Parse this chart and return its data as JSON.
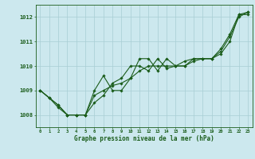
{
  "title": "Graphe pression niveau de la mer (hPa)",
  "background_color": "#cce8ee",
  "grid_color": "#a8cdd4",
  "line_color": "#1a5c1a",
  "xlim": [
    -0.5,
    23.5
  ],
  "ylim": [
    1007.5,
    1012.5
  ],
  "yticks": [
    1008,
    1009,
    1010,
    1011,
    1012
  ],
  "xticks": [
    0,
    1,
    2,
    3,
    4,
    5,
    6,
    7,
    8,
    9,
    10,
    11,
    12,
    13,
    14,
    15,
    16,
    17,
    18,
    19,
    20,
    21,
    22,
    23
  ],
  "series": [
    [
      1009.0,
      1008.7,
      1008.4,
      1008.0,
      1008.0,
      1008.0,
      1009.0,
      1009.6,
      1009.0,
      1009.0,
      1009.5,
      1010.3,
      1010.3,
      1009.8,
      1010.3,
      1010.0,
      1010.0,
      1010.3,
      1010.3,
      1010.3,
      1010.7,
      1011.3,
      1012.1,
      1012.2
    ],
    [
      1009.0,
      1008.7,
      1008.4,
      1008.0,
      1008.0,
      1008.0,
      1008.8,
      1009.0,
      1009.2,
      1009.3,
      1009.5,
      1009.8,
      1010.0,
      1010.0,
      1010.0,
      1010.0,
      1010.2,
      1010.3,
      1010.3,
      1010.3,
      1010.6,
      1011.2,
      1012.0,
      1012.2
    ],
    [
      1009.0,
      1008.7,
      1008.3,
      1008.0,
      1008.0,
      1008.0,
      1008.5,
      1008.8,
      1009.3,
      1009.5,
      1010.0,
      1010.0,
      1009.8,
      1010.3,
      1009.9,
      1010.0,
      1010.0,
      1010.2,
      1010.3,
      1010.3,
      1010.5,
      1011.0,
      1012.1,
      1012.1
    ]
  ]
}
